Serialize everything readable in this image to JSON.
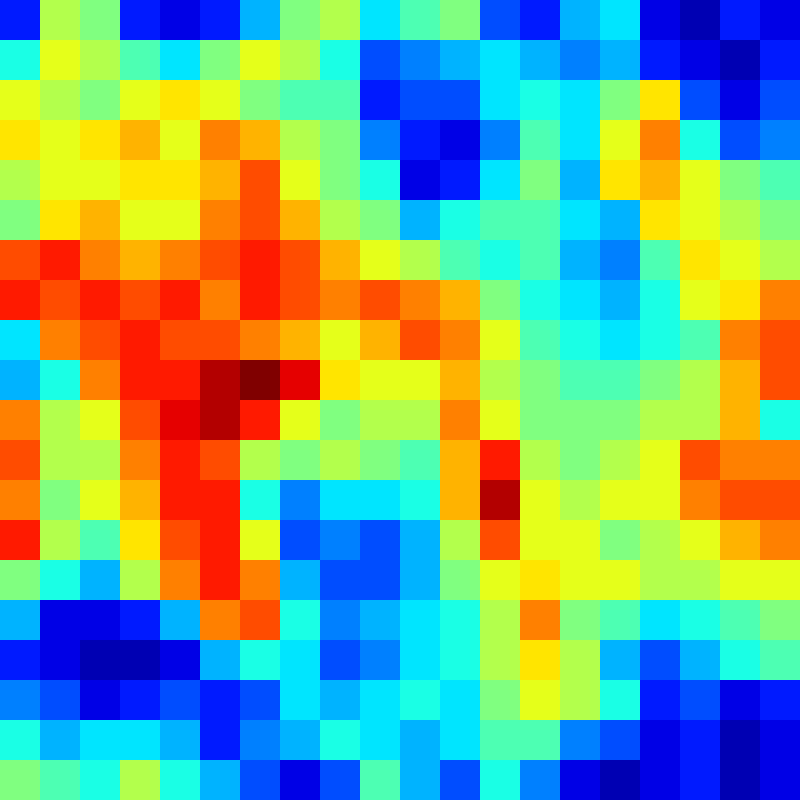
{
  "chart_data": {
    "type": "heatmap",
    "color": "jet",
    "tick_labels": false,
    "zlim": [
      0,
      1
    ],
    "values": [
      [
        0.15,
        0.55,
        0.5,
        0.15,
        0.1,
        0.15,
        0.3,
        0.5,
        0.55,
        0.35,
        0.45,
        0.5,
        0.2,
        0.15,
        0.3,
        0.35,
        0.1,
        0.05,
        0.15,
        0.1
      ],
      [
        0.4,
        0.6,
        0.55,
        0.45,
        0.35,
        0.5,
        0.6,
        0.55,
        0.4,
        0.2,
        0.25,
        0.3,
        0.35,
        0.3,
        0.25,
        0.3,
        0.15,
        0.1,
        0.05,
        0.15
      ],
      [
        0.6,
        0.55,
        0.5,
        0.6,
        0.65,
        0.6,
        0.5,
        0.45,
        0.45,
        0.15,
        0.2,
        0.2,
        0.35,
        0.4,
        0.35,
        0.5,
        0.65,
        0.2,
        0.1,
        0.2
      ],
      [
        0.65,
        0.6,
        0.65,
        0.7,
        0.6,
        0.75,
        0.7,
        0.55,
        0.5,
        0.25,
        0.15,
        0.1,
        0.25,
        0.45,
        0.35,
        0.6,
        0.75,
        0.4,
        0.2,
        0.25
      ],
      [
        0.55,
        0.6,
        0.6,
        0.65,
        0.65,
        0.7,
        0.8,
        0.6,
        0.5,
        0.4,
        0.1,
        0.15,
        0.35,
        0.5,
        0.3,
        0.65,
        0.7,
        0.6,
        0.5,
        0.45
      ],
      [
        0.5,
        0.65,
        0.7,
        0.6,
        0.6,
        0.75,
        0.8,
        0.7,
        0.55,
        0.5,
        0.3,
        0.4,
        0.45,
        0.45,
        0.35,
        0.3,
        0.65,
        0.6,
        0.55,
        0.5
      ],
      [
        0.8,
        0.85,
        0.75,
        0.7,
        0.75,
        0.8,
        0.85,
        0.8,
        0.7,
        0.6,
        0.55,
        0.45,
        0.4,
        0.45,
        0.3,
        0.25,
        0.45,
        0.65,
        0.6,
        0.55
      ],
      [
        0.85,
        0.8,
        0.85,
        0.8,
        0.85,
        0.75,
        0.85,
        0.8,
        0.75,
        0.8,
        0.75,
        0.7,
        0.5,
        0.4,
        0.35,
        0.3,
        0.4,
        0.6,
        0.65,
        0.75
      ],
      [
        0.35,
        0.75,
        0.8,
        0.85,
        0.8,
        0.8,
        0.75,
        0.7,
        0.6,
        0.7,
        0.8,
        0.75,
        0.6,
        0.45,
        0.4,
        0.35,
        0.4,
        0.45,
        0.75,
        0.8
      ],
      [
        0.3,
        0.4,
        0.75,
        0.85,
        0.85,
        0.95,
        1.0,
        0.9,
        0.65,
        0.6,
        0.6,
        0.7,
        0.55,
        0.5,
        0.45,
        0.45,
        0.5,
        0.55,
        0.7,
        0.8
      ],
      [
        0.75,
        0.55,
        0.6,
        0.8,
        0.9,
        0.95,
        0.85,
        0.6,
        0.5,
        0.55,
        0.55,
        0.75,
        0.6,
        0.5,
        0.5,
        0.5,
        0.55,
        0.55,
        0.7,
        0.4
      ],
      [
        0.8,
        0.55,
        0.55,
        0.75,
        0.85,
        0.8,
        0.55,
        0.5,
        0.55,
        0.5,
        0.45,
        0.7,
        0.85,
        0.55,
        0.5,
        0.55,
        0.6,
        0.8,
        0.75,
        0.75
      ],
      [
        0.75,
        0.5,
        0.6,
        0.7,
        0.85,
        0.85,
        0.4,
        0.25,
        0.35,
        0.35,
        0.4,
        0.7,
        0.95,
        0.6,
        0.55,
        0.6,
        0.6,
        0.75,
        0.8,
        0.8
      ],
      [
        0.85,
        0.55,
        0.45,
        0.65,
        0.8,
        0.85,
        0.6,
        0.2,
        0.25,
        0.2,
        0.3,
        0.55,
        0.8,
        0.6,
        0.6,
        0.5,
        0.55,
        0.6,
        0.7,
        0.75
      ],
      [
        0.5,
        0.4,
        0.3,
        0.55,
        0.75,
        0.85,
        0.75,
        0.3,
        0.2,
        0.2,
        0.3,
        0.5,
        0.6,
        0.65,
        0.6,
        0.6,
        0.55,
        0.55,
        0.6,
        0.6
      ],
      [
        0.3,
        0.1,
        0.1,
        0.15,
        0.3,
        0.75,
        0.8,
        0.4,
        0.25,
        0.3,
        0.35,
        0.4,
        0.55,
        0.75,
        0.5,
        0.45,
        0.35,
        0.4,
        0.45,
        0.5
      ],
      [
        0.15,
        0.1,
        0.05,
        0.05,
        0.1,
        0.3,
        0.4,
        0.35,
        0.2,
        0.25,
        0.35,
        0.4,
        0.55,
        0.65,
        0.55,
        0.3,
        0.2,
        0.3,
        0.4,
        0.45
      ],
      [
        0.25,
        0.2,
        0.1,
        0.15,
        0.2,
        0.15,
        0.2,
        0.35,
        0.3,
        0.35,
        0.4,
        0.35,
        0.5,
        0.6,
        0.55,
        0.4,
        0.15,
        0.2,
        0.1,
        0.15
      ],
      [
        0.4,
        0.3,
        0.35,
        0.35,
        0.3,
        0.15,
        0.25,
        0.3,
        0.4,
        0.35,
        0.3,
        0.35,
        0.45,
        0.45,
        0.25,
        0.2,
        0.1,
        0.15,
        0.05,
        0.1
      ],
      [
        0.5,
        0.45,
        0.4,
        0.55,
        0.4,
        0.3,
        0.2,
        0.1,
        0.2,
        0.45,
        0.3,
        0.2,
        0.4,
        0.25,
        0.1,
        0.05,
        0.1,
        0.15,
        0.05,
        0.1
      ]
    ]
  }
}
